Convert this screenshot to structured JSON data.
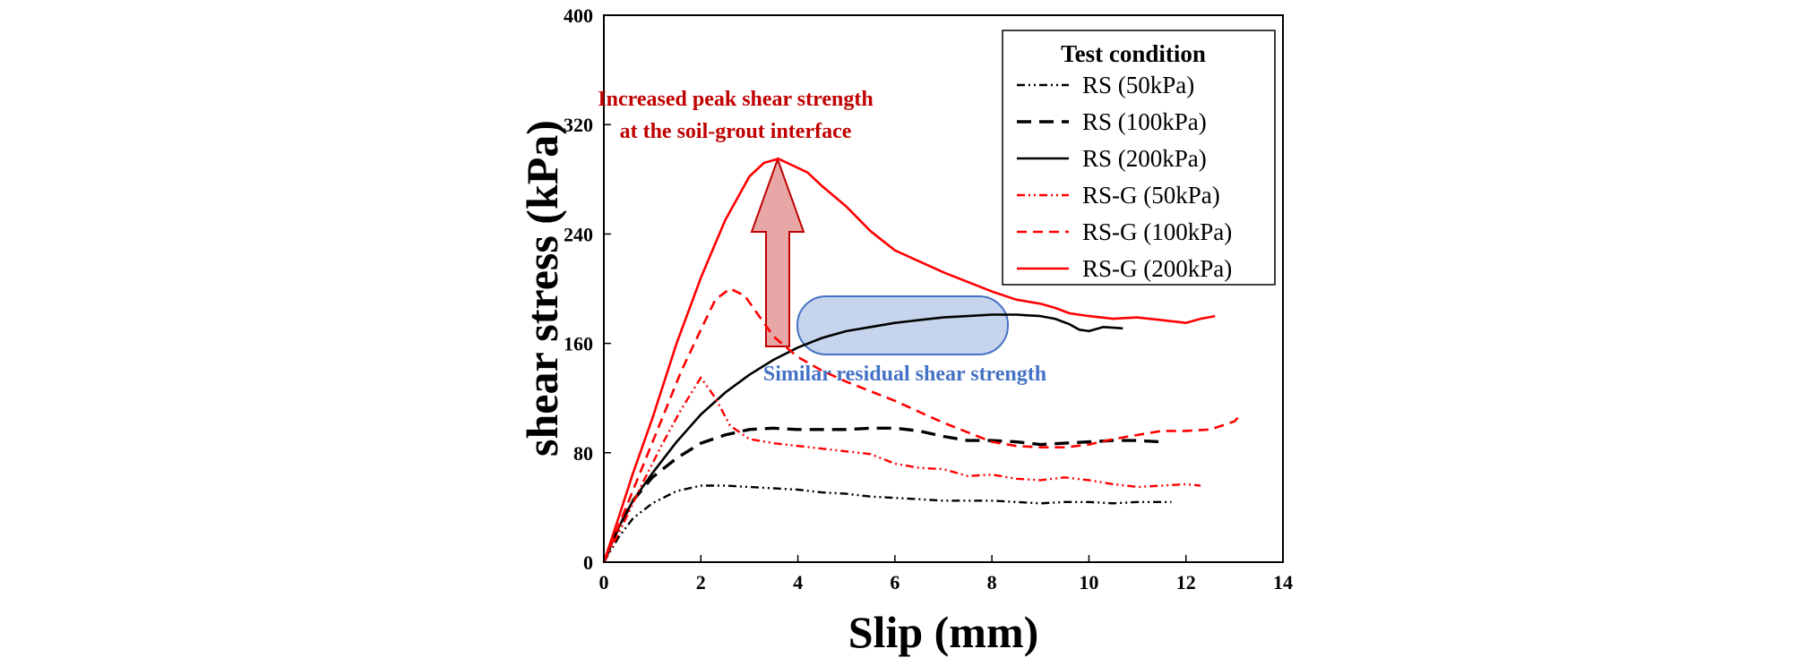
{
  "chart_data": {
    "type": "line",
    "title": "",
    "xlabel": "Slip (mm)",
    "ylabel": "shear stress (kPa)",
    "xlim": [
      0,
      14
    ],
    "ylim": [
      0,
      400
    ],
    "xticks": [
      "0",
      "2",
      "4",
      "6",
      "8",
      "10",
      "12",
      "14"
    ],
    "yticks": [
      "0",
      "80",
      "160",
      "240",
      "320",
      "400"
    ],
    "grid": false,
    "legend": {
      "title": "Test condition",
      "placement": "top-right"
    },
    "series": [
      {
        "name": "RS (50kPa)",
        "color": "#000000",
        "style": "dash-dot-dot",
        "points": [
          [
            0,
            0
          ],
          [
            0.3,
            18
          ],
          [
            0.6,
            32
          ],
          [
            1,
            43
          ],
          [
            1.5,
            52
          ],
          [
            2,
            56
          ],
          [
            2.5,
            56
          ],
          [
            3,
            55
          ],
          [
            3.5,
            54
          ],
          [
            4,
            53
          ],
          [
            4.5,
            51
          ],
          [
            5,
            50
          ],
          [
            5.5,
            48
          ],
          [
            6,
            47
          ],
          [
            6.5,
            46
          ],
          [
            7,
            45
          ],
          [
            7.5,
            45
          ],
          [
            8,
            45
          ],
          [
            8.5,
            44
          ],
          [
            9,
            43
          ],
          [
            9.5,
            44
          ],
          [
            10,
            44
          ],
          [
            10.5,
            43
          ],
          [
            11,
            44
          ],
          [
            11.7,
            44
          ]
        ]
      },
      {
        "name": "RS (100kPa)",
        "color": "#000000",
        "style": "long-dash",
        "points": [
          [
            0,
            0
          ],
          [
            0.3,
            25
          ],
          [
            0.6,
            45
          ],
          [
            1,
            62
          ],
          [
            1.5,
            76
          ],
          [
            2,
            87
          ],
          [
            2.5,
            93
          ],
          [
            3,
            97
          ],
          [
            3.5,
            98
          ],
          [
            4,
            97
          ],
          [
            4.5,
            97
          ],
          [
            5,
            97
          ],
          [
            5.5,
            98
          ],
          [
            6,
            98
          ],
          [
            6.5,
            96
          ],
          [
            7,
            92
          ],
          [
            7.5,
            89
          ],
          [
            8,
            89
          ],
          [
            8.5,
            88
          ],
          [
            9,
            86
          ],
          [
            9.5,
            87
          ],
          [
            10,
            88
          ],
          [
            10.5,
            89
          ],
          [
            11,
            89
          ],
          [
            11.5,
            88
          ]
        ]
      },
      {
        "name": "RS (200kPa)",
        "color": "#000000",
        "style": "solid",
        "points": [
          [
            0,
            0
          ],
          [
            0.3,
            25
          ],
          [
            0.6,
            45
          ],
          [
            1,
            65
          ],
          [
            1.5,
            88
          ],
          [
            2,
            108
          ],
          [
            2.5,
            124
          ],
          [
            3,
            137
          ],
          [
            3.5,
            148
          ],
          [
            4,
            157
          ],
          [
            4.5,
            164
          ],
          [
            5,
            169
          ],
          [
            5.5,
            172
          ],
          [
            6,
            175
          ],
          [
            6.5,
            177
          ],
          [
            7,
            179
          ],
          [
            7.5,
            180
          ],
          [
            8,
            181
          ],
          [
            8.5,
            181
          ],
          [
            9,
            180
          ],
          [
            9.3,
            178
          ],
          [
            9.6,
            174
          ],
          [
            9.8,
            170
          ],
          [
            10,
            169
          ],
          [
            10.3,
            172
          ],
          [
            10.7,
            171
          ]
        ]
      },
      {
        "name": "RS-G (50kPa)",
        "color": "#ff0000",
        "style": "dash-dot-dot",
        "points": [
          [
            0,
            0
          ],
          [
            0.4,
            28
          ],
          [
            0.8,
            58
          ],
          [
            1.2,
            86
          ],
          [
            1.6,
            112
          ],
          [
            2,
            135
          ],
          [
            2.3,
            120
          ],
          [
            2.6,
            100
          ],
          [
            3,
            90
          ],
          [
            3.5,
            87
          ],
          [
            4,
            85
          ],
          [
            4.5,
            83
          ],
          [
            5,
            81
          ],
          [
            5.5,
            79
          ],
          [
            6,
            72
          ],
          [
            6.5,
            69
          ],
          [
            7,
            68
          ],
          [
            7.5,
            63
          ],
          [
            8,
            64
          ],
          [
            8.5,
            61
          ],
          [
            9,
            60
          ],
          [
            9.5,
            62
          ],
          [
            10,
            60
          ],
          [
            10.5,
            57
          ],
          [
            11,
            55
          ],
          [
            11.5,
            56
          ],
          [
            12,
            57
          ],
          [
            12.3,
            56
          ]
        ]
      },
      {
        "name": "RS-G (100kPa)",
        "color": "#ff0000",
        "style": "dash",
        "points": [
          [
            0,
            0
          ],
          [
            0.4,
            35
          ],
          [
            0.8,
            70
          ],
          [
            1.2,
            105
          ],
          [
            1.6,
            140
          ],
          [
            2,
            170
          ],
          [
            2.3,
            192
          ],
          [
            2.6,
            200
          ],
          [
            2.9,
            195
          ],
          [
            3.2,
            180
          ],
          [
            3.5,
            165
          ],
          [
            4,
            150
          ],
          [
            4.5,
            140
          ],
          [
            5,
            132
          ],
          [
            5.5,
            125
          ],
          [
            6,
            118
          ],
          [
            6.5,
            110
          ],
          [
            7,
            102
          ],
          [
            7.5,
            95
          ],
          [
            8,
            88
          ],
          [
            8.5,
            85
          ],
          [
            9,
            84
          ],
          [
            9.5,
            84
          ],
          [
            10,
            86
          ],
          [
            10.5,
            90
          ],
          [
            11,
            93
          ],
          [
            11.5,
            96
          ],
          [
            12,
            96
          ],
          [
            12.5,
            97
          ],
          [
            13,
            103
          ],
          [
            13.1,
            107
          ]
        ]
      },
      {
        "name": "RS-G (200kPa)",
        "color": "#ff0000",
        "style": "solid",
        "points": [
          [
            0,
            0
          ],
          [
            0.3,
            32
          ],
          [
            0.6,
            65
          ],
          [
            1,
            105
          ],
          [
            1.5,
            160
          ],
          [
            2,
            208
          ],
          [
            2.5,
            250
          ],
          [
            3,
            282
          ],
          [
            3.3,
            292
          ],
          [
            3.6,
            295
          ],
          [
            3.9,
            290
          ],
          [
            4.2,
            285
          ],
          [
            4.5,
            275
          ],
          [
            5,
            260
          ],
          [
            5.5,
            242
          ],
          [
            6,
            228
          ],
          [
            6.5,
            220
          ],
          [
            7,
            212
          ],
          [
            7.5,
            205
          ],
          [
            8,
            198
          ],
          [
            8.5,
            192
          ],
          [
            9,
            189
          ],
          [
            9.3,
            186
          ],
          [
            9.6,
            182
          ],
          [
            10,
            180
          ],
          [
            10.5,
            178
          ],
          [
            11,
            179
          ],
          [
            11.5,
            177
          ],
          [
            12,
            175
          ],
          [
            12.3,
            178
          ],
          [
            12.6,
            180
          ]
        ]
      }
    ],
    "annotations": [
      {
        "text": "Increased peak shear strength",
        "color": "#c00000"
      },
      {
        "text": "at the soil-grout interface",
        "color": "#c00000"
      },
      {
        "text": "Similar residual shear strength",
        "color": "#4472c4"
      }
    ]
  }
}
